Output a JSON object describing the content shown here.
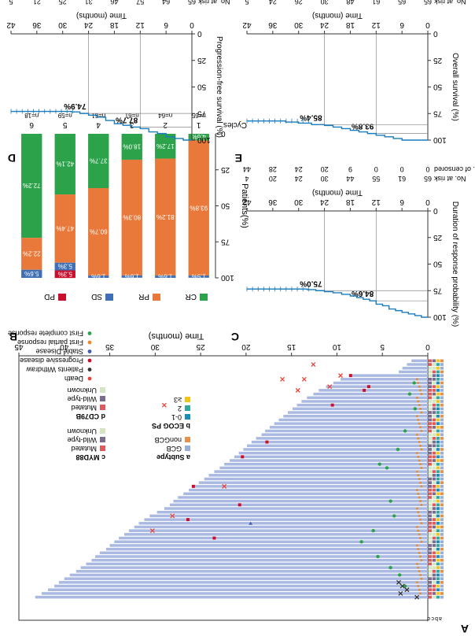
{
  "chart_data": [
    {
      "panel": "A",
      "type": "swimmer",
      "xlabel": "Time (months)",
      "xlim": [
        0,
        45
      ],
      "xticks": [
        0,
        5,
        10,
        15,
        20,
        25,
        30,
        35,
        40,
        45
      ],
      "side_columns": [
        "a",
        "b",
        "c",
        "d"
      ],
      "durations": [
        43.2,
        42.5,
        41.8,
        41.1,
        40.6,
        40.0,
        39.4,
        38.7,
        38.2,
        37.6,
        37.0,
        36.6,
        36.1,
        35.4,
        35.0,
        34.5,
        34.0,
        33.4,
        32.9,
        32.3,
        31.8,
        31.2,
        30.6,
        29.8,
        29.0,
        28.4,
        28.0,
        27.5,
        26.9,
        26.3,
        25.8,
        25.2,
        24.6,
        24.1,
        23.5,
        22.9,
        22.4,
        21.8,
        21.3,
        20.8,
        20.3,
        19.9,
        19.4,
        18.9,
        18.3,
        17.9,
        17.4,
        16.9,
        16.4,
        15.9,
        15.4,
        14.9,
        14.4,
        13.9,
        13.3,
        12.6,
        12.0,
        11.2,
        10.4,
        9.6,
        8.5,
        3.2,
        2.8,
        2.3,
        1.8
      ],
      "events": {
        "deaths": [
          [
            29.0,
            52
          ],
          [
            30.3,
            18
          ],
          [
            28.1,
            22
          ],
          [
            22.4,
            30
          ],
          [
            16.0,
            59
          ],
          [
            12.6,
            63
          ],
          [
            13.6,
            59
          ],
          [
            14.3,
            56
          ],
          [
            10.8,
            57
          ],
          [
            9.6,
            60
          ]
        ],
        "withdraw": [
          [
            1.2,
            0
          ],
          [
            2.3,
            2
          ],
          [
            2.8,
            3
          ],
          [
            3.2,
            4
          ],
          [
            3.0,
            1
          ]
        ],
        "progressive": [
          [
            23.5,
            16
          ],
          [
            26.4,
            21
          ],
          [
            25.8,
            30
          ],
          [
            20.4,
            38
          ],
          [
            17.7,
            42
          ],
          [
            20.7,
            25
          ],
          [
            10.5,
            52
          ],
          [
            8.5,
            60
          ],
          [
            6.5,
            57
          ],
          [
            7.0,
            56
          ]
        ],
        "stable": [
          [
            19.5,
            20
          ]
        ],
        "first_complete": [
          [
            2.5,
            3
          ],
          [
            3.1,
            6
          ],
          [
            4.1,
            8
          ],
          [
            5.5,
            11
          ],
          [
            7.3,
            15
          ],
          [
            6.0,
            18
          ],
          [
            3.7,
            22
          ],
          [
            4.1,
            26
          ],
          [
            4.5,
            35
          ],
          [
            5.3,
            36
          ],
          [
            3.3,
            40
          ],
          [
            2.5,
            45
          ],
          [
            1.4,
            51
          ],
          [
            2.0,
            55
          ],
          [
            1.5,
            58
          ]
        ],
        "first_partial_row_range": [
          1,
          60
        ]
      },
      "legend": {
        "subtype_title": "a Subtype",
        "subtype": [
          {
            "label": "GCB",
            "color": "#9aaedb"
          },
          {
            "label": "nonGCB",
            "color": "#e8904a"
          }
        ],
        "ecog_title": "b ECOG PS",
        "ecog": [
          {
            "label": "0-1",
            "color": "#1a8dbd"
          },
          {
            "label": "2",
            "color": "#2fa89e"
          },
          {
            "label": "≥3",
            "color": "#f0c419"
          }
        ],
        "myd88_title": "c MYD88",
        "myd88": [
          {
            "label": "Mutated",
            "color": "#e05a5a"
          },
          {
            "label": "Wild-type",
            "color": "#7b6b8d"
          },
          {
            "label": "Unknown",
            "color": "#d2e6c2"
          }
        ],
        "cd79b_title": "d CD79B",
        "cd79b": [
          {
            "label": "Mutated",
            "color": "#e05a5a"
          },
          {
            "label": "Wild-type",
            "color": "#7b6b8d"
          },
          {
            "label": "Unknown",
            "color": "#d2e6c2"
          }
        ],
        "events": [
          {
            "label": "Death",
            "color": "#e8423a"
          },
          {
            "label": "Patients Withdraw",
            "color": "#333333"
          },
          {
            "label": "Progressive disease",
            "color": "#c8102e"
          },
          {
            "label": "Stable Disease",
            "color": "#3f5ab0"
          },
          {
            "label": "First partial response",
            "color": "#f08a24"
          },
          {
            "label": "First complete response",
            "color": "#2ca24a"
          }
        ]
      }
    },
    {
      "panel": "B",
      "type": "bar",
      "stacked": true,
      "ylabel": "Patients(%)",
      "ylim": [
        0,
        100
      ],
      "yticks": [
        0,
        25,
        50,
        75,
        100
      ],
      "header": "Cycles",
      "categories": [
        "1",
        "2",
        "3",
        "4",
        "5",
        "6"
      ],
      "n_labels": [
        "n=65",
        "n=64",
        "n=61",
        "n=61",
        "n=59",
        "n=18"
      ],
      "series": [
        {
          "name": "CR",
          "color": "#2ca24a",
          "values": [
            4.6,
            17.2,
            18.0,
            37.7,
            42.1,
            72.2
          ],
          "labels": [
            "4.6%",
            "17.2%",
            "18.0%",
            "37.7%",
            "42.1%",
            "72.2%"
          ]
        },
        {
          "name": "PR",
          "color": "#e8793a",
          "values": [
            93.8,
            81.2,
            80.3,
            60.7,
            47.4,
            22.2
          ],
          "labels": [
            "93.8%",
            "81.2%",
            "80.3%",
            "60.7%",
            "47.4%",
            "22.2%"
          ]
        },
        {
          "name": "SD",
          "color": "#3f6fb5",
          "values": [
            1.5,
            1.6,
            1.6,
            1.6,
            5.3,
            5.6
          ],
          "labels": [
            "1.5%",
            "1.6%",
            "1.6%",
            "1.6%",
            "5.3%",
            "5.6%"
          ]
        },
        {
          "name": "PD",
          "color": "#c8102e",
          "values": [
            0,
            0,
            0,
            0,
            5.3,
            0
          ],
          "labels": [
            "",
            "",
            "",
            "",
            "5.3%",
            ""
          ]
        }
      ],
      "legend": [
        "CR",
        "PR",
        "SD",
        "PD"
      ]
    },
    {
      "panel": "C",
      "type": "line",
      "ylabel": "Duration of response probability (%)",
      "xlabel": "Time (months)",
      "xlim": [
        0,
        42
      ],
      "xticks": [
        0,
        6,
        12,
        18,
        24,
        30,
        36,
        42
      ],
      "ylim": [
        0,
        100
      ],
      "yticks": [
        0,
        25,
        50,
        75,
        100
      ],
      "risk_title": "No. at risk",
      "at_risk": [
        "65",
        "61",
        "55",
        "44",
        "30",
        "24",
        "20",
        "4"
      ],
      "censored_title": "No. of censored",
      "censored": [
        "0",
        "0",
        "0",
        "9",
        "20",
        "24",
        "28",
        "44"
      ],
      "annotations": [
        {
          "x": 12,
          "y": 84.6,
          "label": "84.6%"
        },
        {
          "x": 24,
          "y": 75.0,
          "label": "75.0%"
        }
      ],
      "km_x": [
        0,
        1.5,
        3,
        4.5,
        6,
        7.5,
        9,
        10.5,
        12,
        13.5,
        15,
        16.5,
        18,
        20,
        22,
        24,
        26,
        28,
        30,
        33,
        36,
        40,
        42
      ],
      "km_y": [
        100,
        98.5,
        96.9,
        95.4,
        93.8,
        92.3,
        89.2,
        87.7,
        84.6,
        83.1,
        81.5,
        80.0,
        78.5,
        77.0,
        76.0,
        75.0,
        74.0,
        73.5,
        73.5,
        73.5,
        73.5,
        73.5,
        73.5
      ]
    },
    {
      "panel": "D",
      "type": "line",
      "ylabel": "Progression-free survival (%)",
      "xlabel": "Time (months)",
      "xlim": [
        0,
        42
      ],
      "xticks": [
        0,
        6,
        12,
        18,
        24,
        30,
        36,
        42
      ],
      "ylim": [
        0,
        100
      ],
      "yticks": [
        0,
        25,
        50,
        75,
        100
      ],
      "risk_title": "No. at risk",
      "at_risk": [
        "65",
        "64",
        "57",
        "46",
        "31",
        "25",
        "21",
        "5"
      ],
      "censored_title": "No. of censored",
      "censored": [
        "0",
        "0",
        "0",
        "8",
        "19",
        "24",
        "28",
        "44"
      ],
      "annotations": [
        {
          "x": 12,
          "y": 87.7,
          "label": "87.7%"
        },
        {
          "x": 24,
          "y": 74.9,
          "label": "74.9%"
        }
      ],
      "km_x": [
        0,
        2,
        4,
        6,
        8,
        10,
        12,
        14,
        16,
        18,
        20,
        22,
        24,
        26,
        28,
        30,
        33,
        36,
        40,
        42
      ],
      "km_y": [
        100,
        98.5,
        96.9,
        93.8,
        92.3,
        89.2,
        87.7,
        86.1,
        84.6,
        81.5,
        78.5,
        76.5,
        74.9,
        73.5,
        73.0,
        73.0,
        73.0,
        73.0,
        73.0,
        73.0
      ]
    },
    {
      "panel": "E",
      "type": "line",
      "ylabel": "Overall survival (%)",
      "xlabel": "Time (months)",
      "xlim": [
        0,
        42
      ],
      "xticks": [
        0,
        6,
        12,
        18,
        24,
        30,
        36,
        42
      ],
      "ylim": [
        0,
        100
      ],
      "yticks": [
        0,
        25,
        50,
        75,
        100
      ],
      "risk_title": "No. at risk",
      "at_risk": [
        "65",
        "65",
        "61",
        "48",
        "30",
        "26",
        "24",
        "5"
      ],
      "censored_title": "No. of censored",
      "censored": [
        "0",
        "0",
        "0",
        "8",
        "20",
        "27",
        "31",
        "50"
      ],
      "annotations": [
        {
          "x": 12,
          "y": 93.8,
          "label": "93.8%"
        },
        {
          "x": 24,
          "y": 85.4,
          "label": "85.4%"
        }
      ],
      "km_x": [
        0,
        3,
        6,
        8,
        10,
        12,
        14,
        16,
        18,
        20,
        22,
        24,
        27,
        30,
        33,
        36,
        40,
        42
      ],
      "km_y": [
        100,
        100,
        98.5,
        96.9,
        95.4,
        93.8,
        92.3,
        90.8,
        89.2,
        87.7,
        86.2,
        85.4,
        84.0,
        83.0,
        82.0,
        82.0,
        82.0,
        82.0
      ]
    }
  ],
  "panel_letters": {
    "A": "A",
    "B": "B",
    "C": "C",
    "D": "D",
    "E": "E"
  }
}
